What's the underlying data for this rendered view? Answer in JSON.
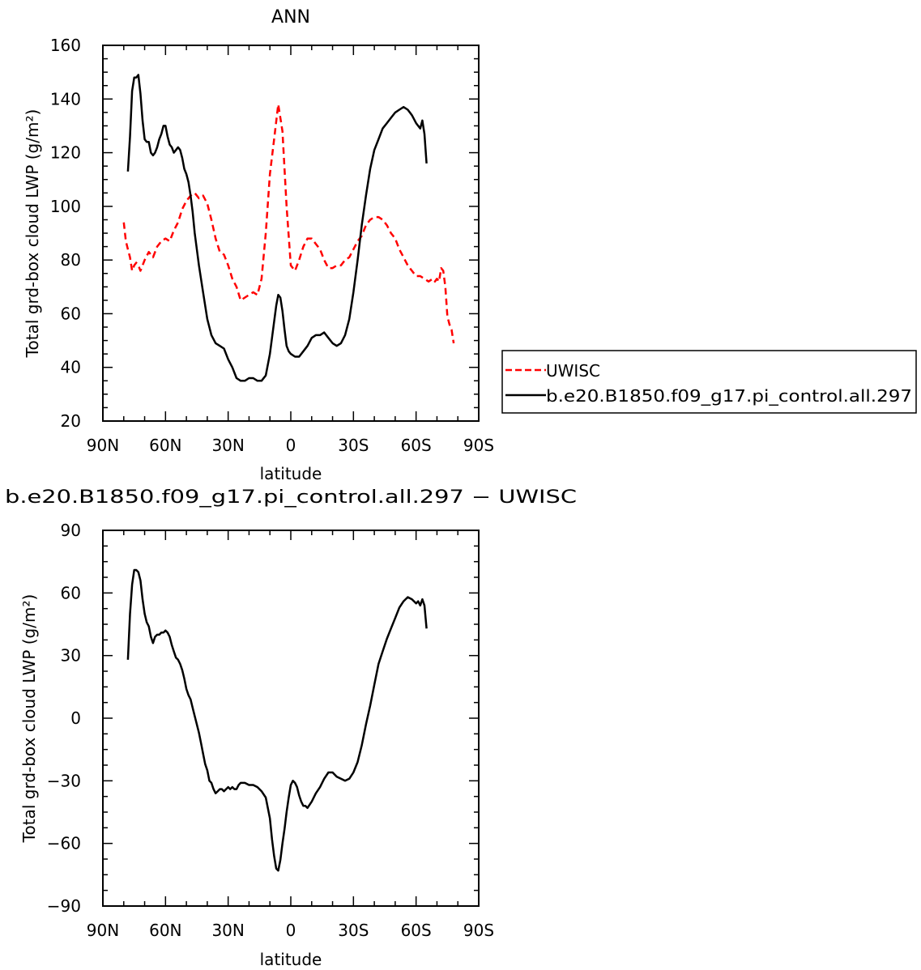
{
  "chart_data": [
    {
      "type": "line",
      "title": "ANN",
      "xlabel": "latitude",
      "ylabel": "Total grd-box cloud LWP (g/m²)",
      "xlim": [
        90,
        -90
      ],
      "ylim": [
        20,
        160
      ],
      "x_ticks": [
        90,
        60,
        30,
        0,
        -30,
        -60,
        -90
      ],
      "x_tick_labels": [
        "90N",
        "60N",
        "30N",
        "0",
        "30S",
        "60S",
        "90S"
      ],
      "y_ticks": [
        20,
        40,
        60,
        80,
        100,
        120,
        140,
        160
      ],
      "y_tick_labels": [
        "20",
        "40",
        "60",
        "80",
        "100",
        "120",
        "140",
        "160"
      ],
      "grid": false,
      "legend_position": "right",
      "series": [
        {
          "name": "UWISC",
          "color": "#ff0000",
          "dash": "dashed",
          "x": [
            80,
            79,
            78,
            77,
            76,
            75,
            74,
            73,
            72,
            70,
            68,
            66,
            64,
            62,
            60,
            58,
            56,
            54,
            52,
            50,
            48,
            46,
            44,
            42,
            40,
            38,
            36,
            34,
            32,
            30,
            28,
            26,
            24,
            22,
            20,
            18,
            16,
            14,
            12,
            10,
            8,
            6,
            4,
            2,
            0,
            -2,
            -4,
            -6,
            -8,
            -10,
            -12,
            -14,
            -16,
            -18,
            -20,
            -22,
            -24,
            -26,
            -28,
            -30,
            -32,
            -34,
            -36,
            -38,
            -40,
            -42,
            -44,
            -46,
            -48,
            -50,
            -52,
            -54,
            -56,
            -58,
            -60,
            -62,
            -64,
            -66,
            -68,
            -69,
            -70,
            -71,
            -72,
            -73,
            -74,
            -75,
            -76,
            -77,
            -78
          ],
          "y": [
            94,
            87,
            84,
            81,
            76,
            78,
            79,
            78,
            76,
            80,
            83,
            81,
            85,
            87,
            88,
            87,
            91,
            94,
            99,
            102,
            104,
            105,
            103,
            104,
            101,
            95,
            88,
            83,
            82,
            78,
            73,
            70,
            65,
            66,
            67,
            68,
            67,
            73,
            90,
            112,
            125,
            138,
            128,
            100,
            78,
            76,
            80,
            85,
            88,
            88,
            86,
            84,
            80,
            77,
            77,
            78,
            78,
            80,
            81,
            84,
            87,
            89,
            93,
            95,
            96,
            96,
            95,
            93,
            90,
            88,
            84,
            81,
            78,
            76,
            74,
            74,
            73,
            72,
            73,
            72,
            73,
            72,
            77,
            76,
            70,
            59,
            56,
            54,
            49
          ]
        },
        {
          "name": "b.e20.B1850.f09_g17.pi_control.all.297",
          "color": "#000000",
          "dash": "solid",
          "x": [
            78,
            77,
            76,
            75,
            74,
            73,
            72,
            71,
            70,
            69,
            68,
            67,
            66,
            65,
            64,
            63,
            62,
            61,
            60,
            59,
            58,
            57,
            56,
            55,
            54,
            53,
            52,
            51,
            50,
            49,
            48,
            47,
            46,
            45,
            44,
            42,
            40,
            38,
            36,
            34,
            32,
            30,
            28,
            26,
            24,
            22,
            20,
            18,
            16,
            14,
            12,
            10,
            8,
            7,
            6,
            5,
            4,
            3,
            2,
            1,
            0,
            -2,
            -4,
            -6,
            -8,
            -10,
            -12,
            -14,
            -16,
            -18,
            -20,
            -22,
            -24,
            -26,
            -28,
            -30,
            -32,
            -34,
            -36,
            -38,
            -40,
            -42,
            -44,
            -46,
            -48,
            -50,
            -52,
            -54,
            -56,
            -58,
            -60,
            -62,
            -63,
            -64,
            -65
          ],
          "y": [
            113,
            126,
            143,
            148,
            148,
            149,
            142,
            132,
            125,
            124,
            124,
            120,
            119,
            120,
            122,
            125,
            127,
            130,
            130,
            126,
            123,
            122,
            120,
            121,
            122,
            121,
            118,
            114,
            112,
            109,
            104,
            98,
            90,
            84,
            78,
            68,
            58,
            52,
            49,
            48,
            47,
            43,
            40,
            36,
            35,
            35,
            36,
            36,
            35,
            35,
            37,
            45,
            57,
            63,
            67,
            66,
            61,
            54,
            48,
            46,
            45,
            44,
            44,
            46,
            48,
            51,
            52,
            52,
            53,
            51,
            49,
            48,
            49,
            52,
            58,
            68,
            80,
            93,
            104,
            114,
            121,
            125,
            129,
            131,
            133,
            135,
            136,
            137,
            136,
            134,
            131,
            129,
            132,
            127,
            116
          ]
        }
      ]
    },
    {
      "type": "line",
      "title": "b.e20.B1850.f09_g17.pi_control.all.297 − UWISC",
      "xlabel": "latitude",
      "ylabel": "Total grd-box cloud LWP (g/m²)",
      "xlim": [
        90,
        -90
      ],
      "ylim": [
        -90,
        90
      ],
      "x_ticks": [
        90,
        60,
        30,
        0,
        -30,
        -60,
        -90
      ],
      "x_tick_labels": [
        "90N",
        "60N",
        "30N",
        "0",
        "30S",
        "60S",
        "90S"
      ],
      "y_ticks": [
        -90,
        -60,
        -30,
        0,
        30,
        60,
        90
      ],
      "y_tick_labels": [
        "−90",
        "−60",
        "−30",
        "0",
        "30",
        "60",
        "90"
      ],
      "grid": false,
      "series": [
        {
          "color": "#000000",
          "dash": "solid",
          "x": [
            78,
            77,
            76,
            75,
            74,
            73,
            72,
            71,
            70,
            69,
            68,
            67,
            66,
            65,
            64,
            63,
            62,
            61,
            60,
            59,
            58,
            57,
            56,
            55,
            54,
            53,
            52,
            51,
            50,
            49,
            48,
            47,
            46,
            45,
            44,
            43,
            42,
            41,
            40,
            39,
            38,
            37,
            36,
            35,
            34,
            33,
            32,
            31,
            30,
            29,
            28,
            27,
            26,
            25,
            24,
            22,
            20,
            18,
            16,
            14,
            12,
            10,
            9,
            8,
            7,
            6,
            5,
            4,
            3,
            2,
            1,
            0,
            -1,
            -2,
            -3,
            -4,
            -5,
            -6,
            -7,
            -8,
            -10,
            -12,
            -14,
            -16,
            -18,
            -19,
            -20,
            -22,
            -24,
            -26,
            -28,
            -30,
            -32,
            -34,
            -36,
            -38,
            -40,
            -42,
            -44,
            -46,
            -48,
            -50,
            -52,
            -54,
            -56,
            -58,
            -59,
            -60,
            -61,
            -62,
            -63,
            -64,
            -65
          ],
          "y": [
            28,
            50,
            64,
            71,
            71,
            70,
            66,
            57,
            50,
            46,
            44,
            39,
            36,
            39,
            40,
            40,
            41,
            41,
            42,
            41,
            39,
            35,
            32,
            29,
            28,
            26,
            23,
            19,
            14,
            11,
            9,
            5,
            1,
            -3,
            -7,
            -12,
            -17,
            -22,
            -25,
            -30,
            -31,
            -34,
            -36,
            -35,
            -34,
            -34,
            -35,
            -34,
            -33,
            -34,
            -33,
            -34,
            -34,
            -32,
            -31,
            -31,
            -32,
            -32,
            -33,
            -35,
            -38,
            -48,
            -58,
            -66,
            -72,
            -73,
            -68,
            -60,
            -53,
            -45,
            -38,
            -32,
            -30,
            -31,
            -33,
            -37,
            -40,
            -42,
            -42,
            -43,
            -40,
            -36,
            -33,
            -29,
            -26,
            -26,
            -26,
            -28,
            -29,
            -30,
            -29,
            -26,
            -21,
            -13,
            -3,
            6,
            16,
            26,
            32,
            38,
            43,
            48,
            53,
            56,
            58,
            57,
            56,
            55,
            56,
            54,
            57,
            54,
            43
          ]
        }
      ]
    }
  ],
  "colors": {
    "uwisc": "#ff0000",
    "model": "#000000",
    "axes": "#000000",
    "background": "#ffffff"
  }
}
